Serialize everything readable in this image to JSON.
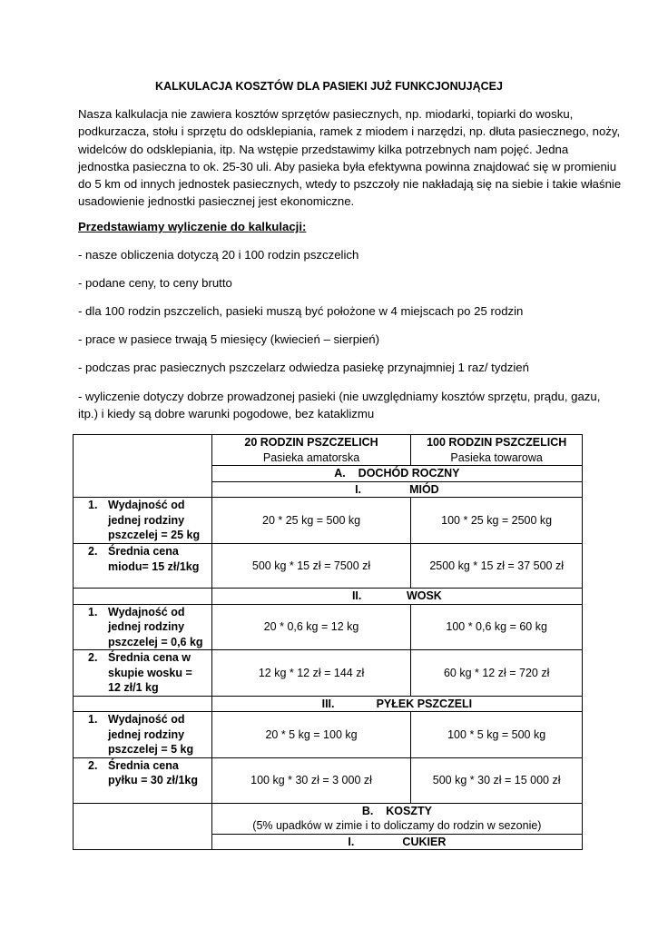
{
  "title": "KALKULACJA KOSZTÓW DLA PASIEKI JUŻ FUNKCJONUJĄCEJ",
  "intro_lines": [
    "Nasza kalkulacja nie zawiera kosztów sprzętów pasiecznych, np. miodarki, topiarki do wosku,",
    "podkurzacza, stołu i sprzętu do odsklepiania, ramek z miodem i narzędzi, np. dłuta pasiecznego, noży,",
    "widelców do odsklepiania, itp. Na wstępie przedstawimy kilka potrzebnych nam pojęć. Jedna",
    "jednostka pasieczna to ok. 25-30 uli. Aby pasieka była efektywna powinna znajdować się w promieniu",
    "do 5 km od innych jednostek pasiecznych, wtedy to pszczoły nie nakładają się na siebie i takie właśnie",
    "usadowienie jednostki pasiecznej jest ekonomiczne."
  ],
  "subheading": "Przedstawiamy wyliczenie do kalkulacji:",
  "bullets": [
    "- nasze obliczenia dotyczą 20 i 100 rodzin pszczelich",
    "- podane ceny, to ceny brutto",
    "- dla 100 rodzin pszczelich, pasieki muszą być położone w 4 miejscach po 25 rodzin",
    "- prace w pasiece trwają 5 miesięcy (kwiecień – sierpień)",
    "- podczas prac pasiecznych pszczelarz odwiedza pasiekę przynajmniej 1 raz/ tydzień",
    "- wyliczenie dotyczy dobrze prowadzonej pasieki (nie uwzględniamy kosztów sprzętu, prądu, gazu,",
    "itp.) i kiedy są dobre warunki pogodowe, bez kataklizmu"
  ],
  "table": {
    "col1_title": "20 RODZIN PSZCZELICH",
    "col1_sub": "Pasieka amatorska",
    "col2_title": "100 RODZIN PSZCZELICH",
    "col2_sub": "Pasieka towarowa",
    "sectionA": {
      "num": "A.",
      "label": "DOCHÓD ROCZNY"
    },
    "miod": {
      "num": "I.",
      "label": "MIÓD",
      "rows": [
        {
          "num": "1.",
          "lines": [
            "Wydajność od",
            "jednej rodziny",
            "pszczelej = 25 kg"
          ],
          "c1": "20 * 25 kg = 500 kg",
          "c2": "100 * 25 kg = 2500 kg"
        },
        {
          "num": "2.",
          "lines": [
            "Średnia cena",
            "miodu= 15 zł/1kg"
          ],
          "c1": "500 kg * 15 zł = 7500 zł",
          "c2": "2500 kg * 15 zł = 37 500 zł"
        }
      ]
    },
    "wosk": {
      "num": "II.",
      "label": "WOSK",
      "rows": [
        {
          "num": "1.",
          "lines": [
            "Wydajność od",
            "jednej rodziny",
            "pszczelej = 0,6 kg"
          ],
          "c1": "20 * 0,6 kg = 12 kg",
          "c2": "100 * 0,6 kg = 60 kg"
        },
        {
          "num": "2.",
          "lines": [
            "Średnia cena w",
            "skupie wosku =",
            "12 zł/1 kg"
          ],
          "c1": "12 kg * 12 zł = 144 zł",
          "c2": "60 kg * 12 zł = 720 zł"
        }
      ]
    },
    "pylek": {
      "num": "III.",
      "label": "PYŁEK PSZCZELI",
      "rows": [
        {
          "num": "1.",
          "lines": [
            "Wydajność od",
            "jednej rodziny",
            "pszczelej = 5 kg"
          ],
          "c1": "20 * 5 kg = 100 kg",
          "c2": "100 * 5 kg  = 500 kg"
        },
        {
          "num": "2.",
          "lines": [
            "Średnia cena",
            "pyłku = 30 zł/1kg"
          ],
          "c1": "100 kg * 30 zł = 3 000 zł",
          "c2": "500 kg * 30 zł = 15 000 zł"
        }
      ]
    },
    "sectionB": {
      "num": "B.",
      "label": "KOSZTY",
      "note": "(5% upadków w zimie i to doliczamy do rodzin w sezonie)"
    },
    "cukier": {
      "num": "I.",
      "label": "CUKIER"
    }
  }
}
